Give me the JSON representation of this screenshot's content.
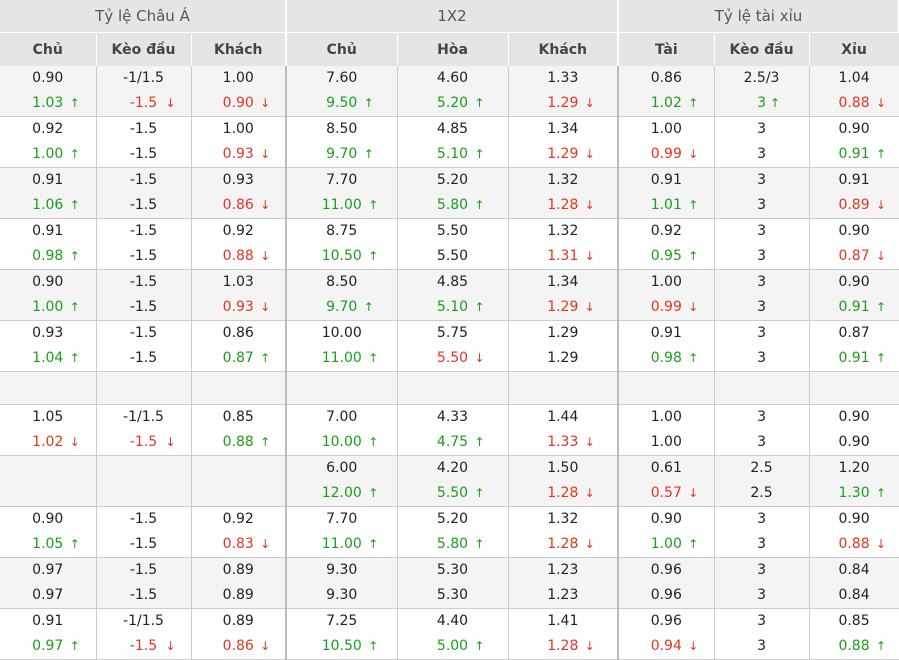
{
  "headers": {
    "groups": [
      "Tỷ lệ Châu Á",
      "1X2",
      "Tỷ lệ tài xỉu"
    ],
    "columns": [
      "Chủ",
      "Kèo đầu",
      "Khách",
      "Chủ",
      "Hòa",
      "Khách",
      "Tài",
      "Kèo đầu",
      "Xỉu"
    ]
  },
  "arrows": {
    "up": "↑",
    "down": "↓"
  },
  "colors": {
    "up": "#19a019",
    "down": "#e8331e",
    "header_bg": "#e5e5e5",
    "alt_row_bg": "#f4f4f4"
  },
  "rows": [
    {
      "style": "odd",
      "cells": [
        {
          "t": "0.90",
          "b": "1.03",
          "d": "up"
        },
        {
          "t": "-1/1.5",
          "b": "-1.5",
          "d": "down"
        },
        {
          "t": "1.00",
          "b": "0.90",
          "d": "down"
        },
        {
          "t": "7.60",
          "b": "9.50",
          "d": "up"
        },
        {
          "t": "4.60",
          "b": "5.20",
          "d": "up"
        },
        {
          "t": "1.33",
          "b": "1.29",
          "d": "down"
        },
        {
          "t": "0.86",
          "b": "1.02",
          "d": "up"
        },
        {
          "t": "2.5/3",
          "b": "3",
          "d": "up"
        },
        {
          "t": "1.04",
          "b": "0.88",
          "d": "down"
        }
      ]
    },
    {
      "style": "even",
      "cells": [
        {
          "t": "0.92",
          "b": "1.00",
          "d": "up"
        },
        {
          "t": "-1.5",
          "b": "-1.5",
          "d": ""
        },
        {
          "t": "1.00",
          "b": "0.93",
          "d": "down"
        },
        {
          "t": "8.50",
          "b": "9.70",
          "d": "up"
        },
        {
          "t": "4.85",
          "b": "5.10",
          "d": "up"
        },
        {
          "t": "1.34",
          "b": "1.29",
          "d": "down"
        },
        {
          "t": "1.00",
          "b": "0.99",
          "d": "down"
        },
        {
          "t": "3",
          "b": "3",
          "d": ""
        },
        {
          "t": "0.90",
          "b": "0.91",
          "d": "up"
        }
      ]
    },
    {
      "style": "odd",
      "cells": [
        {
          "t": "0.91",
          "b": "1.06",
          "d": "up"
        },
        {
          "t": "-1.5",
          "b": "-1.5",
          "d": ""
        },
        {
          "t": "0.93",
          "b": "0.86",
          "d": "down"
        },
        {
          "t": "7.70",
          "b": "11.00",
          "d": "up"
        },
        {
          "t": "5.20",
          "b": "5.80",
          "d": "up"
        },
        {
          "t": "1.32",
          "b": "1.28",
          "d": "down"
        },
        {
          "t": "0.91",
          "b": "1.01",
          "d": "up"
        },
        {
          "t": "3",
          "b": "3",
          "d": ""
        },
        {
          "t": "0.91",
          "b": "0.89",
          "d": "down"
        }
      ]
    },
    {
      "style": "even",
      "cells": [
        {
          "t": "0.91",
          "b": "0.98",
          "d": "up"
        },
        {
          "t": "-1.5",
          "b": "-1.5",
          "d": ""
        },
        {
          "t": "0.92",
          "b": "0.88",
          "d": "down"
        },
        {
          "t": "8.75",
          "b": "10.50",
          "d": "up"
        },
        {
          "t": "5.50",
          "b": "5.50",
          "d": ""
        },
        {
          "t": "1.32",
          "b": "1.31",
          "d": "down"
        },
        {
          "t": "0.92",
          "b": "0.95",
          "d": "up"
        },
        {
          "t": "3",
          "b": "3",
          "d": ""
        },
        {
          "t": "0.90",
          "b": "0.87",
          "d": "down"
        }
      ]
    },
    {
      "style": "odd",
      "cells": [
        {
          "t": "0.90",
          "b": "1.00",
          "d": "up"
        },
        {
          "t": "-1.5",
          "b": "-1.5",
          "d": ""
        },
        {
          "t": "1.03",
          "b": "0.93",
          "d": "down"
        },
        {
          "t": "8.50",
          "b": "9.70",
          "d": "up"
        },
        {
          "t": "4.85",
          "b": "5.10",
          "d": "up"
        },
        {
          "t": "1.34",
          "b": "1.29",
          "d": "down"
        },
        {
          "t": "1.00",
          "b": "0.99",
          "d": "down"
        },
        {
          "t": "3",
          "b": "3",
          "d": ""
        },
        {
          "t": "0.90",
          "b": "0.91",
          "d": "up"
        }
      ]
    },
    {
      "style": "even",
      "cells": [
        {
          "t": "0.93",
          "b": "1.04",
          "d": "up"
        },
        {
          "t": "-1.5",
          "b": "-1.5",
          "d": ""
        },
        {
          "t": "0.86",
          "b": "0.87",
          "d": "up"
        },
        {
          "t": "10.00",
          "b": "11.00",
          "d": "up"
        },
        {
          "t": "5.75",
          "b": "5.50",
          "d": "down"
        },
        {
          "t": "1.29",
          "b": "1.29",
          "d": ""
        },
        {
          "t": "0.91",
          "b": "0.98",
          "d": "up"
        },
        {
          "t": "3",
          "b": "3",
          "d": ""
        },
        {
          "t": "0.87",
          "b": "0.91",
          "d": "up"
        }
      ]
    },
    {
      "style": "spacer",
      "cells": []
    },
    {
      "style": "even",
      "cells": [
        {
          "t": "1.05",
          "b": "1.02",
          "d": "down"
        },
        {
          "t": "-1/1.5",
          "b": "-1.5",
          "d": "down"
        },
        {
          "t": "0.85",
          "b": "0.88",
          "d": "up"
        },
        {
          "t": "7.00",
          "b": "10.00",
          "d": "up"
        },
        {
          "t": "4.33",
          "b": "4.75",
          "d": "up"
        },
        {
          "t": "1.44",
          "b": "1.33",
          "d": "down"
        },
        {
          "t": "1.00",
          "b": "1.00",
          "d": ""
        },
        {
          "t": "3",
          "b": "3",
          "d": ""
        },
        {
          "t": "0.90",
          "b": "0.90",
          "d": ""
        }
      ]
    },
    {
      "style": "odd",
      "cells": [
        {
          "t": "",
          "b": "",
          "d": ""
        },
        {
          "t": "",
          "b": "",
          "d": ""
        },
        {
          "t": "",
          "b": "",
          "d": ""
        },
        {
          "t": "6.00",
          "b": "12.00",
          "d": "up"
        },
        {
          "t": "4.20",
          "b": "5.50",
          "d": "up"
        },
        {
          "t": "1.50",
          "b": "1.28",
          "d": "down"
        },
        {
          "t": "0.61",
          "b": "0.57",
          "d": "down"
        },
        {
          "t": "2.5",
          "b": "2.5",
          "d": ""
        },
        {
          "t": "1.20",
          "b": "1.30",
          "d": "up"
        }
      ]
    },
    {
      "style": "even",
      "cells": [
        {
          "t": "0.90",
          "b": "1.05",
          "d": "up"
        },
        {
          "t": "-1.5",
          "b": "-1.5",
          "d": ""
        },
        {
          "t": "0.92",
          "b": "0.83",
          "d": "down"
        },
        {
          "t": "7.70",
          "b": "11.00",
          "d": "up"
        },
        {
          "t": "5.20",
          "b": "5.80",
          "d": "up"
        },
        {
          "t": "1.32",
          "b": "1.28",
          "d": "down"
        },
        {
          "t": "0.90",
          "b": "1.00",
          "d": "up"
        },
        {
          "t": "3",
          "b": "3",
          "d": ""
        },
        {
          "t": "0.90",
          "b": "0.88",
          "d": "down"
        }
      ]
    },
    {
      "style": "odd",
      "cells": [
        {
          "t": "0.97",
          "b": "0.97",
          "d": ""
        },
        {
          "t": "-1.5",
          "b": "-1.5",
          "d": ""
        },
        {
          "t": "0.89",
          "b": "0.89",
          "d": ""
        },
        {
          "t": "9.30",
          "b": "9.30",
          "d": ""
        },
        {
          "t": "5.30",
          "b": "5.30",
          "d": ""
        },
        {
          "t": "1.23",
          "b": "1.23",
          "d": ""
        },
        {
          "t": "0.96",
          "b": "0.96",
          "d": ""
        },
        {
          "t": "3",
          "b": "3",
          "d": ""
        },
        {
          "t": "0.84",
          "b": "0.84",
          "d": ""
        }
      ]
    },
    {
      "style": "even",
      "cells": [
        {
          "t": "0.91",
          "b": "0.97",
          "d": "up"
        },
        {
          "t": "-1/1.5",
          "b": "-1.5",
          "d": "down"
        },
        {
          "t": "0.89",
          "b": "0.86",
          "d": "down"
        },
        {
          "t": "7.25",
          "b": "10.50",
          "d": "up"
        },
        {
          "t": "4.40",
          "b": "5.00",
          "d": "up"
        },
        {
          "t": "1.41",
          "b": "1.28",
          "d": "down"
        },
        {
          "t": "0.96",
          "b": "0.94",
          "d": "down"
        },
        {
          "t": "3",
          "b": "3",
          "d": ""
        },
        {
          "t": "0.85",
          "b": "0.88",
          "d": "up"
        }
      ]
    }
  ]
}
